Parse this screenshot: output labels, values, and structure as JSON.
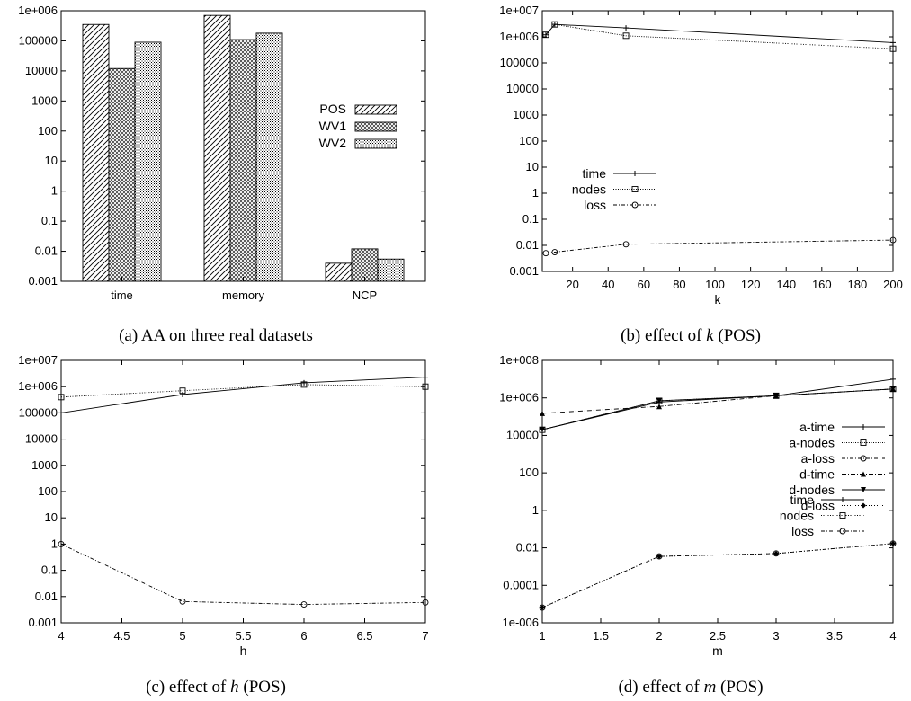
{
  "chart_data": [
    {
      "type": "bar",
      "caption": "(a) AA on three real datasets",
      "yscale": "log",
      "ylim": [
        0.001,
        1000000
      ],
      "yticks": [
        "0.001",
        "0.01",
        "0.1",
        "1",
        "10",
        "100",
        "1000",
        "10000",
        "100000",
        "1e+006"
      ],
      "categories": [
        "time",
        "memory",
        "NCP"
      ],
      "legend_position": "right",
      "series": [
        {
          "name": "POS",
          "pattern": "hatch",
          "values": [
            350000,
            700000,
            0.004
          ]
        },
        {
          "name": "WV1",
          "pattern": "crosshatch",
          "values": [
            12000,
            110000,
            0.012
          ]
        },
        {
          "name": "WV2",
          "pattern": "dots",
          "values": [
            90000,
            180000,
            0.0055
          ]
        }
      ]
    },
    {
      "type": "line",
      "caption_prefix": "(b) effect of ",
      "caption_var": "k",
      "caption_suffix": " (POS)",
      "xlabel": "k",
      "xlim": [
        3,
        200
      ],
      "xticks": [
        20,
        40,
        60,
        80,
        100,
        120,
        140,
        160,
        180,
        200
      ],
      "yscale": "log",
      "ylim": [
        0.001,
        10000000
      ],
      "yticks": [
        "0.001",
        "0.01",
        "0.1",
        "1",
        "10",
        "100",
        "1000",
        "10000",
        "100000",
        "1e+006",
        "1e+007"
      ],
      "legend_position": "left",
      "series": [
        {
          "name": "time",
          "marker": "plus",
          "dash": "",
          "x": [
            5,
            10,
            50,
            200
          ],
          "y": [
            1200000,
            3000000,
            2200000,
            600000
          ]
        },
        {
          "name": "nodes",
          "marker": "square",
          "dash": "1,1.5",
          "x": [
            5,
            10,
            50,
            200
          ],
          "y": [
            1200000,
            3000000,
            1100000,
            350000
          ]
        },
        {
          "name": "loss",
          "marker": "circle",
          "dash": "4,2,1,2",
          "x": [
            5,
            10,
            50,
            200
          ],
          "y": [
            0.005,
            0.0055,
            0.011,
            0.016
          ]
        }
      ]
    },
    {
      "type": "line",
      "caption_prefix": "(c) effect of ",
      "caption_var": "h",
      "caption_suffix": " (POS)",
      "xlabel": "h",
      "xlim": [
        4,
        7
      ],
      "xticks": [
        4,
        4.5,
        5,
        5.5,
        6,
        6.5,
        7
      ],
      "yscale": "log",
      "ylim": [
        0.001,
        10000000
      ],
      "yticks": [
        "0.001",
        "0.01",
        "0.1",
        "1",
        "10",
        "100",
        "1000",
        "10000",
        "100000",
        "1e+006",
        "1e+007"
      ],
      "legend_position": "right",
      "series": [
        {
          "name": "time",
          "marker": "plus",
          "dash": "",
          "x": [
            4,
            5,
            6,
            7
          ],
          "y": [
            100000,
            500000,
            1400000,
            2300000
          ]
        },
        {
          "name": "nodes",
          "marker": "square",
          "dash": "1,1.5",
          "x": [
            4,
            5,
            6,
            7
          ],
          "y": [
            400000,
            700000,
            1200000,
            1000000
          ]
        },
        {
          "name": "loss",
          "marker": "circle",
          "dash": "4,2,1,2",
          "x": [
            4,
            5,
            6,
            7
          ],
          "y": [
            1,
            0.0065,
            0.005,
            0.006
          ]
        }
      ]
    },
    {
      "type": "line",
      "caption_prefix": "(d) effect of ",
      "caption_var": "m",
      "caption_suffix": " (POS)",
      "xlabel": "m",
      "xlim": [
        1,
        4
      ],
      "xticks": [
        1,
        1.5,
        2,
        2.5,
        3,
        3.5,
        4
      ],
      "yscale": "log",
      "ylim": [
        1e-06,
        100000000
      ],
      "yticks": [
        "1e-006",
        "0.0001",
        "0.01",
        "1",
        "100",
        "10000",
        "1e+006",
        "1e+008"
      ],
      "legend_position": "right",
      "series": [
        {
          "name": "a-time",
          "marker": "plus",
          "dash": "",
          "x": [
            1,
            2,
            3,
            4
          ],
          "y": [
            20000,
            600000,
            1300000,
            10000000
          ]
        },
        {
          "name": "a-nodes",
          "marker": "square",
          "dash": "1,1.5",
          "x": [
            1,
            2,
            3,
            4
          ],
          "y": [
            20000,
            700000,
            1300000,
            3000000
          ]
        },
        {
          "name": "a-loss",
          "marker": "circle",
          "dash": "4,2,1,2",
          "x": [
            1,
            2,
            3,
            4
          ],
          "y": [
            6.5e-06,
            0.0035,
            0.005,
            0.017
          ]
        },
        {
          "name": "d-time",
          "marker": "triangle",
          "dash": "5,2,1,2",
          "x": [
            1,
            2,
            3,
            4
          ],
          "y": [
            150000,
            350000,
            1300000,
            3000000
          ]
        },
        {
          "name": "d-nodes",
          "marker": "triangle-down",
          "dash": "",
          "x": [
            1,
            2,
            3,
            4
          ],
          "y": [
            20000,
            700000,
            1300000,
            3000000
          ]
        },
        {
          "name": "d-loss",
          "marker": "diamond",
          "dash": "1,2",
          "x": [
            1,
            2,
            3,
            4
          ],
          "y": [
            6.5e-06,
            0.0035,
            0.005,
            0.017
          ]
        }
      ]
    }
  ]
}
